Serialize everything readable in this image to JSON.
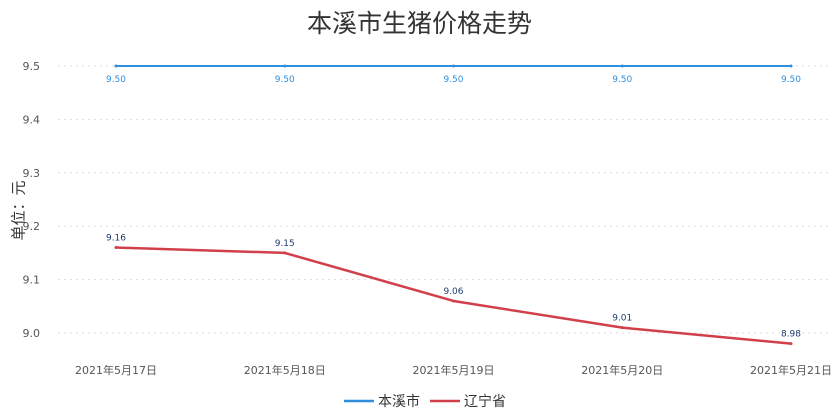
{
  "chart_data": {
    "type": "line",
    "title": "本溪市生猪价格走势",
    "ylabel": "单位：元",
    "xlabel": "",
    "categories": [
      "2021年5月17日",
      "2021年5月18日",
      "2021年5月19日",
      "2021年5月20日",
      "2021年5月21日"
    ],
    "ylim": [
      9.0,
      9.5
    ],
    "yticks": [
      "9.0",
      "9.1",
      "9.2",
      "9.3",
      "9.4",
      "9.5"
    ],
    "grid": true,
    "legend_position": "bottom",
    "series": [
      {
        "name": "本溪市",
        "color": "#2f8fdd",
        "values": [
          9.5,
          9.5,
          9.5,
          9.5,
          9.5
        ],
        "labels": [
          "9.50",
          "9.50",
          "9.50",
          "9.50",
          "9.50"
        ]
      },
      {
        "name": "辽宁省",
        "color": "#d1404a",
        "values": [
          9.16,
          9.15,
          9.06,
          9.01,
          8.98
        ],
        "labels": [
          "9.16",
          "9.15",
          "9.06",
          "9.01",
          "8.98"
        ]
      }
    ]
  }
}
